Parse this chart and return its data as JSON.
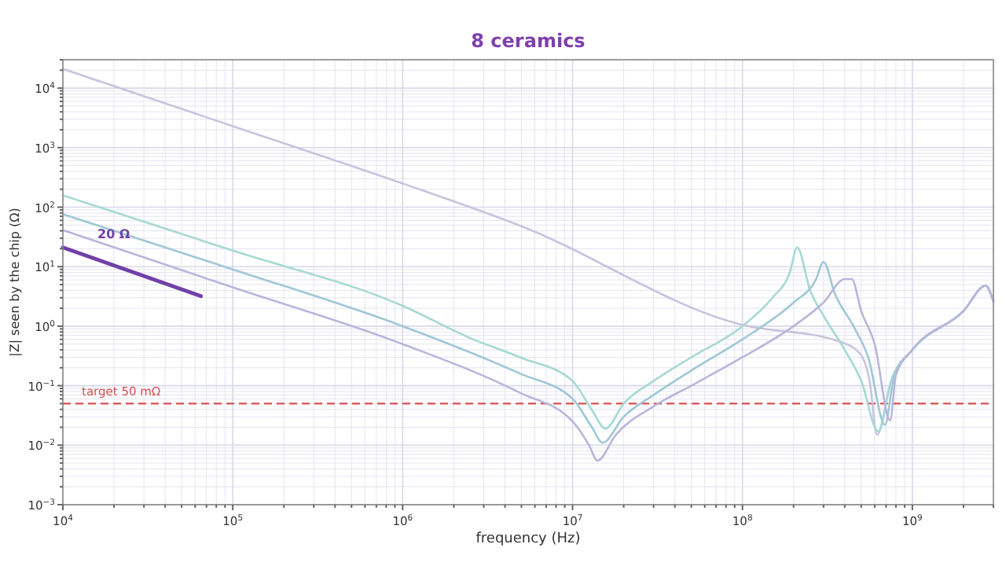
{
  "chart_data": {
    "type": "line",
    "title": "8 ceramics",
    "xlabel": "frequency  (Hz)",
    "ylabel": "|Z|  seen by the chip  (Ω)",
    "log": "xy",
    "grid": true,
    "line_style": "solid",
    "marker": "none",
    "xlim": [
      10000,
      3000000000
    ],
    "ylim": [
      0.001,
      30000
    ],
    "xticks": [
      {
        "value": 10000,
        "label": "10$^{4}$"
      },
      {
        "value": 100000,
        "label": "10$^{5}$"
      },
      {
        "value": 1000000,
        "label": "10$^{6}$"
      },
      {
        "value": 10000000,
        "label": "10$^{7}$"
      },
      {
        "value": 100000000,
        "label": "10$^{8}$"
      },
      {
        "value": 1000000000,
        "label": "10$^{9}$"
      }
    ],
    "yticks": [
      {
        "value": 0.001,
        "label": "10$^{−3}$"
      },
      {
        "value": 0.01,
        "label": "10$^{−2}$"
      },
      {
        "value": 0.1,
        "label": "10$^{−1}$"
      },
      {
        "value": 1,
        "label": "10$^{0}$"
      },
      {
        "value": 10,
        "label": "10$^{1}$"
      },
      {
        "value": 100,
        "label": "10$^{2}$"
      },
      {
        "value": 1000,
        "label": "10$^{3}$"
      },
      {
        "value": 10000,
        "label": "10$^{4}$"
      }
    ],
    "series": [
      {
        "color": "#c9c3dd",
        "x": [
          10000,
          100000,
          1000000,
          4900000,
          100000000,
          360000000,
          490000000,
          560000000,
          620000000,
          750000000,
          1000000000,
          2000000000,
          2700000000,
          3000000000
        ],
        "values": [
          21000,
          2300,
          250,
          49,
          1.05,
          0.57,
          0.35,
          0.12,
          0.015,
          0.12,
          0.4,
          1.8,
          4.8,
          2.6
        ]
      },
      {
        "color": "#a6d9d2",
        "x": [
          10000,
          100000,
          1000000,
          2500000,
          4900000,
          10000000,
          13000000,
          15600000,
          20000000,
          30000000,
          50000000,
          100000000,
          150000000,
          190000000,
          210000000,
          250000000,
          300000000,
          400000000,
          500000000,
          630000000,
          750000000,
          1000000000,
          2000000000,
          2700000000,
          3000000000
        ],
        "values": [
          158,
          18.6,
          2.2,
          0.63,
          0.3,
          0.12,
          0.039,
          0.019,
          0.05,
          0.12,
          0.3,
          1,
          3,
          8,
          21,
          4,
          1.5,
          0.4,
          0.12,
          0.017,
          0.12,
          0.4,
          1.8,
          4.8,
          2.6
        ]
      },
      {
        "color": "#9fc7d6",
        "x": [
          10000,
          100000,
          1000000,
          4900000,
          10000000,
          13000000,
          15000000,
          20000000,
          30000000,
          50000000,
          100000000,
          200000000,
          270000000,
          300000000,
          350000000,
          450000000,
          550000000,
          690000000,
          780000000,
          1000000000,
          2000000000,
          2700000000,
          3000000000
        ],
        "values": [
          76,
          9,
          1,
          0.16,
          0.06,
          0.02,
          0.011,
          0.03,
          0.07,
          0.18,
          0.6,
          2.5,
          6,
          12,
          3.5,
          1,
          0.3,
          0.022,
          0.14,
          0.4,
          1.8,
          4.8,
          2.6
        ]
      },
      {
        "color": "#b9b6dc",
        "x": [
          10000,
          100000,
          1000000,
          4900000,
          10000000,
          12500000,
          14000000,
          18000000,
          30000000,
          50000000,
          100000000,
          200000000,
          300000000,
          400000000,
          440000000,
          500000000,
          600000000,
          740000000,
          800000000,
          1000000000,
          2000000000,
          2700000000,
          3000000000
        ],
        "values": [
          41,
          4.5,
          0.5,
          0.076,
          0.025,
          0.01,
          0.0055,
          0.015,
          0.045,
          0.1,
          0.3,
          1,
          2.5,
          6.2,
          6.2,
          1.8,
          0.5,
          0.026,
          0.15,
          0.4,
          1.8,
          4.8,
          2.6
        ]
      },
      {
        "name": "20 Ω",
        "color": "#7040a8",
        "x": [
          10000,
          65000
        ],
        "values": [
          21,
          3.2
        ]
      }
    ],
    "ref_lines": [
      {
        "axis": "y",
        "value": 0.05,
        "label": "target 50 mΩ",
        "color": "#d65050",
        "line_style": "dashed"
      }
    ]
  }
}
